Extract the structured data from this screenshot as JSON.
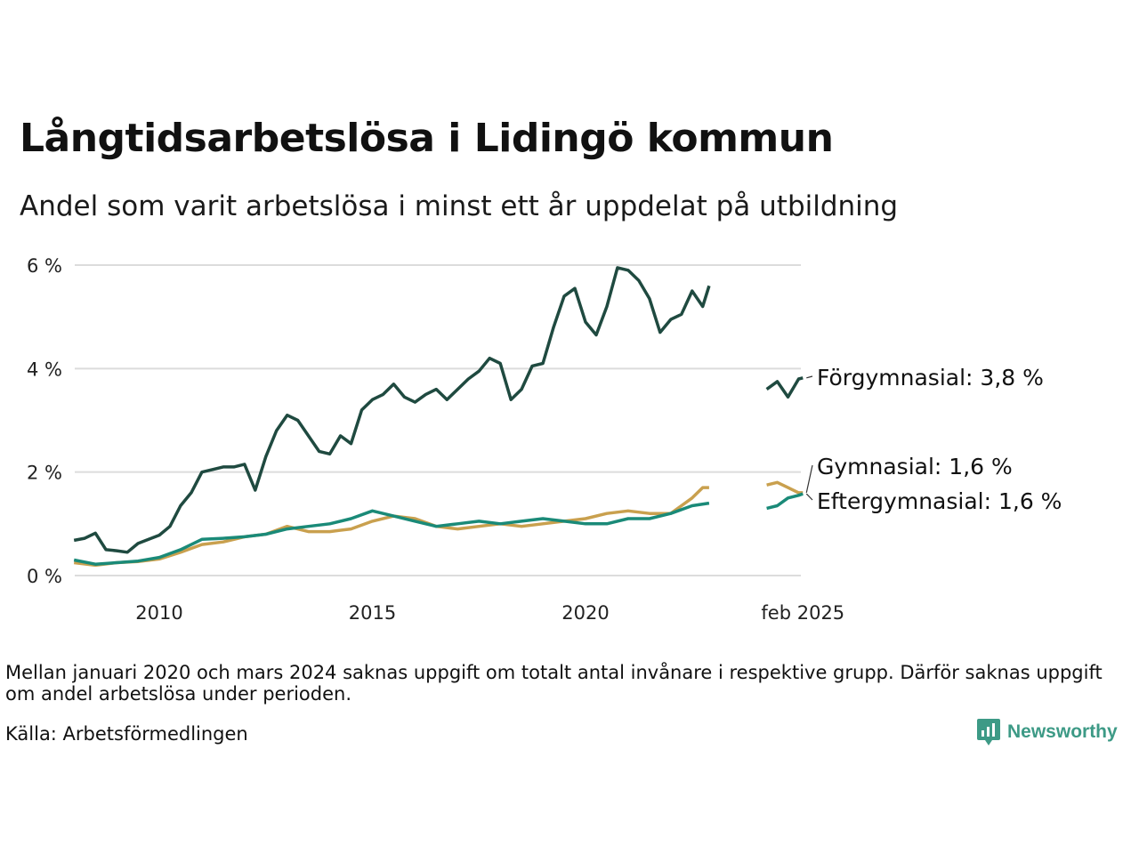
{
  "title": "Långtidsarbetslösa i Lidingö kommun",
  "subtitle": "Andel som varit arbetslösa i minst ett år uppdelat på utbildning",
  "note": "Mellan januari 2020 och mars 2024 saknas uppgift om totalt antal invånare i respektive grupp. Därför saknas uppgift om andel arbetslösa under perioden.",
  "source": "Källa: Arbetsförmedlingen",
  "brand": "Newsworthy",
  "chart_data": {
    "type": "line",
    "title": "Långtidsarbetslösa i Lidingö kommun",
    "subtitle": "Andel som varit arbetslösa i minst ett år uppdelat på utbildning",
    "x_ticks": [
      "2010",
      "2015",
      "2020",
      "feb 2025"
    ],
    "y_ticks": [
      "0 %",
      "2 %",
      "4 %",
      "6 %"
    ],
    "ylim": [
      0,
      6
    ],
    "grid": true,
    "series": [
      {
        "name": "Förgymnasial",
        "label": "Förgymnasial: 3,8 %",
        "color": "#1f4a40",
        "points": [
          [
            2008.0,
            0.68
          ],
          [
            2008.25,
            0.72
          ],
          [
            2008.5,
            0.82
          ],
          [
            2008.75,
            0.5
          ],
          [
            2009.0,
            0.48
          ],
          [
            2009.25,
            0.45
          ],
          [
            2009.5,
            0.62
          ],
          [
            2009.75,
            0.7
          ],
          [
            2010.0,
            0.78
          ],
          [
            2010.25,
            0.95
          ],
          [
            2010.5,
            1.35
          ],
          [
            2010.75,
            1.6
          ],
          [
            2011.0,
            2.0
          ],
          [
            2011.25,
            2.05
          ],
          [
            2011.5,
            2.1
          ],
          [
            2011.75,
            2.1
          ],
          [
            2012.0,
            2.15
          ],
          [
            2012.25,
            1.65
          ],
          [
            2012.5,
            2.3
          ],
          [
            2012.75,
            2.8
          ],
          [
            2013.0,
            3.1
          ],
          [
            2013.25,
            3.0
          ],
          [
            2013.5,
            2.7
          ],
          [
            2013.75,
            2.4
          ],
          [
            2014.0,
            2.35
          ],
          [
            2014.25,
            2.7
          ],
          [
            2014.5,
            2.55
          ],
          [
            2014.75,
            3.2
          ],
          [
            2015.0,
            3.4
          ],
          [
            2015.25,
            3.5
          ],
          [
            2015.5,
            3.7
          ],
          [
            2015.75,
            3.45
          ],
          [
            2016.0,
            3.35
          ],
          [
            2016.25,
            3.5
          ],
          [
            2016.5,
            3.6
          ],
          [
            2016.75,
            3.4
          ],
          [
            2017.0,
            3.6
          ],
          [
            2017.25,
            3.8
          ],
          [
            2017.5,
            3.95
          ],
          [
            2017.75,
            4.2
          ],
          [
            2018.0,
            4.1
          ],
          [
            2018.25,
            3.4
          ],
          [
            2018.5,
            3.6
          ],
          [
            2018.75,
            4.05
          ],
          [
            2019.0,
            4.1
          ],
          [
            2019.25,
            4.8
          ],
          [
            2019.5,
            5.4
          ],
          [
            2019.75,
            5.55
          ],
          [
            2020.0,
            4.9
          ],
          [
            2020.25,
            4.65
          ],
          [
            2020.5,
            5.2
          ],
          [
            2020.75,
            5.95
          ],
          [
            2021.0,
            5.9
          ],
          [
            2021.25,
            5.7
          ],
          [
            2021.5,
            5.35
          ],
          [
            2021.75,
            4.7
          ],
          [
            2022.0,
            4.95
          ],
          [
            2022.25,
            5.05
          ],
          [
            2022.5,
            5.5
          ],
          [
            2022.75,
            5.2
          ],
          [
            2022.9,
            5.6
          ]
        ],
        "points_recent": [
          [
            2024.25,
            3.6
          ],
          [
            2024.5,
            3.75
          ],
          [
            2024.75,
            3.45
          ],
          [
            2025.0,
            3.8
          ],
          [
            2025.1,
            3.82
          ]
        ]
      },
      {
        "name": "Gymnasial",
        "label": "Gymnasial: 1,6 %",
        "color": "#c9a04e",
        "points": [
          [
            2008.0,
            0.25
          ],
          [
            2008.5,
            0.2
          ],
          [
            2009.0,
            0.25
          ],
          [
            2009.5,
            0.27
          ],
          [
            2010.0,
            0.32
          ],
          [
            2010.5,
            0.45
          ],
          [
            2011.0,
            0.6
          ],
          [
            2011.5,
            0.65
          ],
          [
            2012.0,
            0.75
          ],
          [
            2012.5,
            0.8
          ],
          [
            2013.0,
            0.95
          ],
          [
            2013.5,
            0.85
          ],
          [
            2014.0,
            0.85
          ],
          [
            2014.5,
            0.9
          ],
          [
            2015.0,
            1.05
          ],
          [
            2015.5,
            1.15
          ],
          [
            2016.0,
            1.1
          ],
          [
            2016.5,
            0.95
          ],
          [
            2017.0,
            0.9
          ],
          [
            2017.5,
            0.95
          ],
          [
            2018.0,
            1.0
          ],
          [
            2018.5,
            0.95
          ],
          [
            2019.0,
            1.0
          ],
          [
            2019.5,
            1.05
          ],
          [
            2020.0,
            1.1
          ],
          [
            2020.5,
            1.2
          ],
          [
            2021.0,
            1.25
          ],
          [
            2021.5,
            1.2
          ],
          [
            2022.0,
            1.2
          ],
          [
            2022.5,
            1.5
          ],
          [
            2022.75,
            1.7
          ],
          [
            2022.9,
            1.7
          ]
        ],
        "points_recent": [
          [
            2024.25,
            1.75
          ],
          [
            2024.5,
            1.8
          ],
          [
            2024.75,
            1.7
          ],
          [
            2025.0,
            1.6
          ],
          [
            2025.1,
            1.6
          ]
        ]
      },
      {
        "name": "Eftergymnasial",
        "label": "Eftergymnasial: 1,6 %",
        "color": "#1a8a78",
        "points": [
          [
            2008.0,
            0.3
          ],
          [
            2008.5,
            0.22
          ],
          [
            2009.0,
            0.25
          ],
          [
            2009.5,
            0.28
          ],
          [
            2010.0,
            0.35
          ],
          [
            2010.5,
            0.5
          ],
          [
            2011.0,
            0.7
          ],
          [
            2011.5,
            0.72
          ],
          [
            2012.0,
            0.75
          ],
          [
            2012.5,
            0.8
          ],
          [
            2013.0,
            0.9
          ],
          [
            2013.5,
            0.95
          ],
          [
            2014.0,
            1.0
          ],
          [
            2014.5,
            1.1
          ],
          [
            2015.0,
            1.25
          ],
          [
            2015.5,
            1.15
          ],
          [
            2016.0,
            1.05
          ],
          [
            2016.5,
            0.95
          ],
          [
            2017.0,
            1.0
          ],
          [
            2017.5,
            1.05
          ],
          [
            2018.0,
            1.0
          ],
          [
            2018.5,
            1.05
          ],
          [
            2019.0,
            1.1
          ],
          [
            2019.5,
            1.05
          ],
          [
            2020.0,
            1.0
          ],
          [
            2020.5,
            1.0
          ],
          [
            2021.0,
            1.1
          ],
          [
            2021.5,
            1.1
          ],
          [
            2022.0,
            1.2
          ],
          [
            2022.5,
            1.35
          ],
          [
            2022.9,
            1.4
          ]
        ],
        "points_recent": [
          [
            2024.25,
            1.3
          ],
          [
            2024.5,
            1.35
          ],
          [
            2024.75,
            1.5
          ],
          [
            2025.0,
            1.55
          ],
          [
            2025.1,
            1.58
          ]
        ]
      }
    ]
  }
}
